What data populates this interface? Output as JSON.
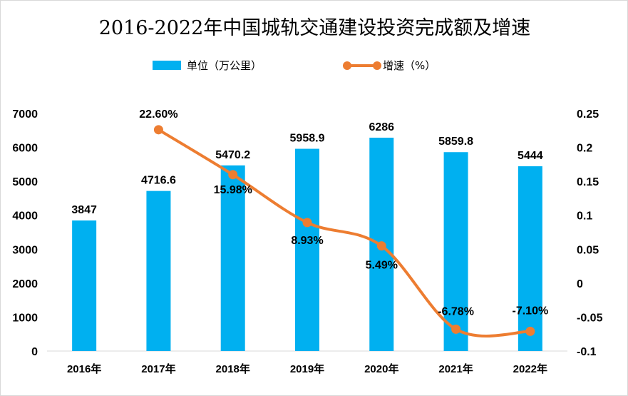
{
  "chart_data": {
    "type": "bar+line",
    "title": "2016-2022年中国城轨交通建设投资完成额及增速",
    "categories": [
      "2016年",
      "2017年",
      "2018年",
      "2019年",
      "2020年",
      "2021年",
      "2022年"
    ],
    "series": [
      {
        "name": "单位（万公里）",
        "type": "bar",
        "axis": "left",
        "color": "#00b0f0",
        "values": [
          3847,
          4716.6,
          5470.2,
          5958.9,
          6286,
          5859.8,
          5444
        ],
        "labels": [
          "3847",
          "4716.6",
          "5470.2",
          "5958.9",
          "6286",
          "5859.8",
          "5444"
        ]
      },
      {
        "name": "增速（%）",
        "type": "line",
        "axis": "right",
        "color": "#ed7d31",
        "smooth": true,
        "values": [
          null,
          0.226,
          0.1598,
          0.0893,
          0.0549,
          -0.0678,
          -0.071
        ],
        "labels": [
          "",
          "22.60%",
          "15.98%",
          "8.93%",
          "5.49%",
          "-6.78%",
          "-7.10%"
        ]
      }
    ],
    "yleft": {
      "ylim": [
        0,
        7000
      ],
      "ticks": [
        "0",
        "1000",
        "2000",
        "3000",
        "4000",
        "5000",
        "6000",
        "7000"
      ]
    },
    "yright": {
      "ylim": [
        -0.1,
        0.25
      ],
      "ticks": [
        "-0.1",
        "-0.05",
        "0",
        "0.05",
        "0.1",
        "0.15",
        "0.2",
        "0.25"
      ]
    },
    "grid": false,
    "legend": "top"
  }
}
